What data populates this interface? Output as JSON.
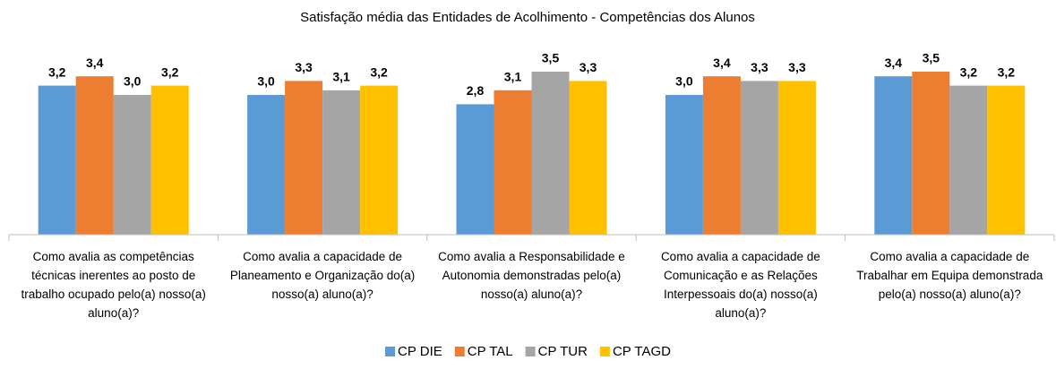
{
  "chart_data": {
    "type": "bar",
    "title": "Satisfação média das Entidades de Acolhimento - Competências dos Alunos",
    "categories": [
      "Como avalia as competências técnicas inerentes ao posto de trabalho ocupado pelo(a) nosso(a) aluno(a)?",
      "Como avalia a capacidade de Planeamento e Organização do(a) nosso(a) aluno(a)?",
      "Como avalia a Responsabilidade e Autonomia demonstradas pelo(a) nosso(a) aluno(a)?",
      "Como avalia a capacidade de Comunicação e as Relações Interpessoais do(a) nosso(a) aluno(a)?",
      "Como avalia a capacidade de Trabalhar em Equipa demonstrada pelo(a) nosso(a) aluno(a)?"
    ],
    "series": [
      {
        "name": "CP DIE",
        "color": "#5b9bd5",
        "values": [
          3.2,
          3.0,
          2.8,
          3.0,
          3.4
        ],
        "value_labels": [
          "3,2",
          "3,0",
          "2,8",
          "3,0",
          "3,4"
        ]
      },
      {
        "name": "CP TAL",
        "color": "#ed7d31",
        "values": [
          3.4,
          3.3,
          3.1,
          3.4,
          3.5
        ],
        "value_labels": [
          "3,4",
          "3,3",
          "3,1",
          "3,4",
          "3,5"
        ]
      },
      {
        "name": "CP TUR",
        "color": "#a5a5a5",
        "values": [
          3.0,
          3.1,
          3.5,
          3.3,
          3.2
        ],
        "value_labels": [
          "3,0",
          "3,1",
          "3,5",
          "3,3",
          "3,2"
        ]
      },
      {
        "name": "CP TAGD",
        "color": "#ffc000",
        "values": [
          3.2,
          3.2,
          3.3,
          3.3,
          3.2
        ],
        "value_labels": [
          "3,2",
          "3,2",
          "3,3",
          "3,3",
          "3,2"
        ]
      }
    ],
    "ylim": [
      0,
      4
    ],
    "legend": "bottom"
  }
}
